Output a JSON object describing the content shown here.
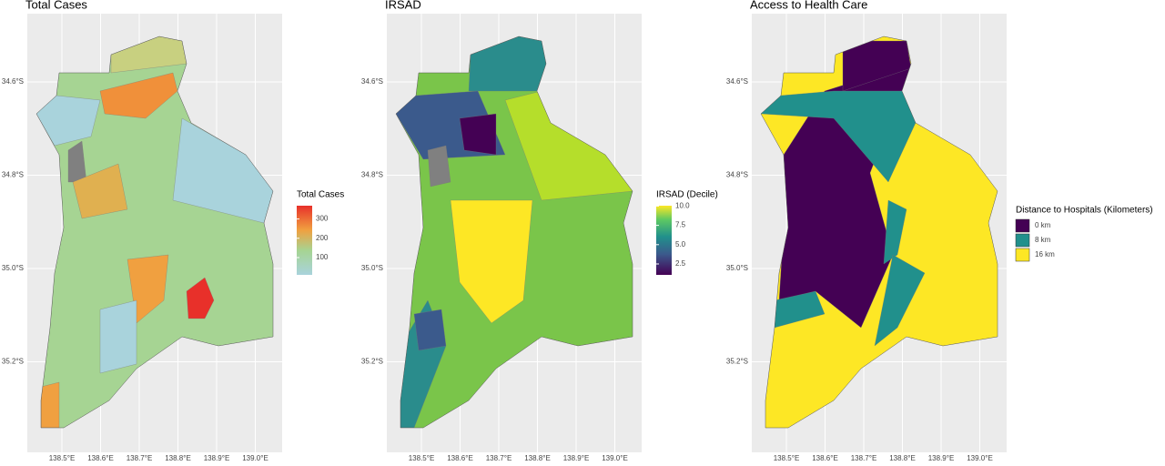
{
  "panels": [
    {
      "title": "Total Cases",
      "legend": {
        "title": "Total Cases",
        "ticks": [
          100,
          200,
          300
        ]
      }
    },
    {
      "title": "IRSAD",
      "legend": {
        "title": "IRSAD (Decile)",
        "ticks": [
          2.5,
          {
            "value": 5,
            "label": "5.0"
          },
          {
            "value": 7.5,
            "label": "7.5"
          },
          {
            "value": 10,
            "label": "10.0"
          }
        ]
      }
    },
    {
      "title": "Access to Health Care",
      "legend": {
        "title": "Distance to Hospitals (Kilometers)",
        "keys": [
          {
            "label": "0 km",
            "color": "#440154"
          },
          {
            "label": "8 km",
            "color": "#21908c"
          },
          {
            "label": "16 km",
            "color": "#fde725"
          }
        ]
      }
    }
  ],
  "xticks": [
    {
      "value": 138.5,
      "label": "138.5°E"
    },
    {
      "value": 138.6,
      "label": "138.6°E"
    },
    {
      "value": 138.7,
      "label": "138.7°E"
    },
    {
      "value": 138.8,
      "label": "138.8°E"
    },
    {
      "value": 138.9,
      "label": "138.9°E"
    },
    {
      "value": 139.0,
      "label": "139.0°E"
    }
  ],
  "yticks": [
    {
      "value": -34.6,
      "label": "34.6°S"
    },
    {
      "value": -34.8,
      "label": "34.8°S"
    },
    {
      "value": -35.0,
      "label": "35.0°S"
    },
    {
      "value": -35.2,
      "label": "35.2°S"
    }
  ]
}
